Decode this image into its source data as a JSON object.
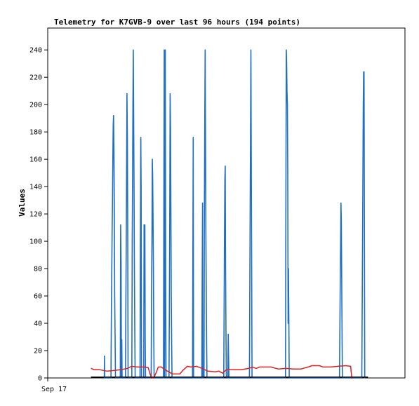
{
  "chart_data": {
    "type": "line",
    "title": "Telemetry for K7GVB-9 over last 96 hours (194 points)",
    "ylabel": "Values",
    "xlabel": "",
    "ylim": [
      0,
      256
    ],
    "y_ticks": [
      0,
      20,
      40,
      60,
      80,
      100,
      120,
      140,
      160,
      180,
      200,
      220,
      240
    ],
    "x_range_hours": [
      0,
      96
    ],
    "x_tick_labels": [
      {
        "label": "Sep 17",
        "hour": 0
      }
    ],
    "grid": false,
    "legend": "none",
    "colors": {
      "blue": "#1f6fc4",
      "red": "#e02020",
      "black": "#000000"
    },
    "series": [
      {
        "color": "#1f6fc4",
        "style": "impulse",
        "points": [
          [
            15.2,
            0
          ],
          [
            15.25,
            16
          ],
          [
            15.3,
            0
          ],
          [
            17.0,
            0
          ],
          [
            17.1,
            45
          ],
          [
            17.2,
            75
          ],
          [
            17.3,
            105
          ],
          [
            17.4,
            130
          ],
          [
            17.5,
            160
          ],
          [
            17.6,
            185
          ],
          [
            17.7,
            192
          ],
          [
            17.8,
            165
          ],
          [
            17.9,
            120
          ],
          [
            18.0,
            60
          ],
          [
            18.1,
            30
          ],
          [
            18.2,
            0
          ],
          [
            19.5,
            0
          ],
          [
            19.6,
            112
          ],
          [
            19.7,
            85
          ],
          [
            19.8,
            0
          ],
          [
            19.9,
            28
          ],
          [
            20.0,
            0
          ],
          [
            20.9,
            0
          ],
          [
            21.0,
            50
          ],
          [
            21.1,
            100
          ],
          [
            21.2,
            155
          ],
          [
            21.3,
            208
          ],
          [
            21.4,
            175
          ],
          [
            21.5,
            105
          ],
          [
            21.6,
            0
          ],
          [
            22.6,
            0
          ],
          [
            22.7,
            100
          ],
          [
            22.8,
            150
          ],
          [
            22.9,
            200
          ],
          [
            23.0,
            240
          ],
          [
            23.1,
            185
          ],
          [
            23.2,
            140
          ],
          [
            23.3,
            80
          ],
          [
            23.4,
            30
          ],
          [
            23.5,
            0
          ],
          [
            24.8,
            0
          ],
          [
            24.9,
            95
          ],
          [
            25.0,
            176
          ],
          [
            25.1,
            140
          ],
          [
            25.2,
            0
          ],
          [
            25.8,
            0
          ],
          [
            25.9,
            112
          ],
          [
            26.0,
            55
          ],
          [
            26.1,
            112
          ],
          [
            26.2,
            30
          ],
          [
            26.3,
            0
          ],
          [
            27.8,
            0
          ],
          [
            27.9,
            60
          ],
          [
            28.0,
            100
          ],
          [
            28.1,
            160
          ],
          [
            28.2,
            148
          ],
          [
            28.3,
            120
          ],
          [
            28.4,
            80
          ],
          [
            28.5,
            30
          ],
          [
            28.6,
            0
          ],
          [
            31.1,
            0
          ],
          [
            31.2,
            120
          ],
          [
            31.3,
            240
          ],
          [
            31.4,
            0
          ],
          [
            31.5,
            120
          ],
          [
            31.6,
            240
          ],
          [
            31.7,
            60
          ],
          [
            31.8,
            0
          ],
          [
            32.6,
            0
          ],
          [
            32.7,
            60
          ],
          [
            32.8,
            120
          ],
          [
            32.9,
            208
          ],
          [
            33.0,
            182
          ],
          [
            33.1,
            120
          ],
          [
            33.2,
            60
          ],
          [
            33.3,
            25
          ],
          [
            33.4,
            0
          ],
          [
            38.9,
            0
          ],
          [
            39.0,
            88
          ],
          [
            39.1,
            176
          ],
          [
            39.2,
            0
          ],
          [
            41.4,
            0
          ],
          [
            41.5,
            64
          ],
          [
            41.6,
            128
          ],
          [
            41.7,
            0
          ],
          [
            42.0,
            0
          ],
          [
            42.1,
            120
          ],
          [
            42.2,
            180
          ],
          [
            42.3,
            240
          ],
          [
            42.4,
            175
          ],
          [
            42.5,
            110
          ],
          [
            42.6,
            60
          ],
          [
            42.7,
            25
          ],
          [
            42.8,
            0
          ],
          [
            47.3,
            0
          ],
          [
            47.4,
            48
          ],
          [
            47.5,
            100
          ],
          [
            47.6,
            145
          ],
          [
            47.7,
            155
          ],
          [
            47.8,
            80
          ],
          [
            47.9,
            32
          ],
          [
            48.0,
            0
          ],
          [
            48.4,
            0
          ],
          [
            48.5,
            32
          ],
          [
            48.6,
            15
          ],
          [
            48.7,
            0
          ],
          [
            54.2,
            0
          ],
          [
            54.3,
            60
          ],
          [
            54.4,
            120
          ],
          [
            54.5,
            180
          ],
          [
            54.6,
            240
          ],
          [
            54.7,
            160
          ],
          [
            54.8,
            80
          ],
          [
            54.9,
            0
          ],
          [
            63.9,
            0
          ],
          [
            64.0,
            120
          ],
          [
            64.1,
            240
          ],
          [
            64.2,
            230
          ],
          [
            64.3,
            210
          ],
          [
            64.4,
            200
          ],
          [
            64.5,
            150
          ],
          [
            64.6,
            40
          ],
          [
            64.7,
            80
          ],
          [
            64.8,
            40
          ],
          [
            64.9,
            0
          ],
          [
            78.4,
            0
          ],
          [
            78.5,
            32
          ],
          [
            78.6,
            64
          ],
          [
            78.7,
            96
          ],
          [
            78.8,
            128
          ],
          [
            78.9,
            116
          ],
          [
            79.0,
            70
          ],
          [
            79.1,
            30
          ],
          [
            79.2,
            0
          ],
          [
            84.4,
            0
          ],
          [
            84.5,
            48
          ],
          [
            84.6,
            100
          ],
          [
            84.7,
            150
          ],
          [
            84.8,
            200
          ],
          [
            84.9,
            224
          ],
          [
            85.0,
            224
          ],
          [
            85.1,
            112
          ],
          [
            85.2,
            0
          ]
        ]
      },
      {
        "color": "#e02020",
        "style": "line",
        "points": [
          [
            11.7,
            7
          ],
          [
            12.5,
            6
          ],
          [
            14.0,
            6
          ],
          [
            16.0,
            5
          ],
          [
            18.0,
            5.5
          ],
          [
            19.5,
            6
          ],
          [
            20.5,
            6.5
          ],
          [
            21.5,
            7
          ],
          [
            22.5,
            8.5
          ],
          [
            24.0,
            8
          ],
          [
            26.0,
            8
          ],
          [
            27.0,
            7.5
          ],
          [
            27.5,
            3
          ],
          [
            27.9,
            0
          ],
          [
            28.5,
            0
          ],
          [
            29.3,
            5
          ],
          [
            29.7,
            8
          ],
          [
            30.5,
            8
          ],
          [
            31.5,
            6
          ],
          [
            33.5,
            3
          ],
          [
            35.5,
            3
          ],
          [
            36.5,
            6
          ],
          [
            37.5,
            8.5
          ],
          [
            38.5,
            8
          ],
          [
            40.0,
            8.5
          ],
          [
            41.5,
            7
          ],
          [
            43.0,
            5
          ],
          [
            45.0,
            4.5
          ],
          [
            46.0,
            5
          ],
          [
            47.0,
            3.5
          ],
          [
            48.0,
            6
          ],
          [
            50.0,
            6
          ],
          [
            52.0,
            6
          ],
          [
            54.0,
            7
          ],
          [
            55.0,
            8
          ],
          [
            56.0,
            7
          ],
          [
            57.0,
            8
          ],
          [
            60.0,
            8
          ],
          [
            62.0,
            6.5
          ],
          [
            64.0,
            7
          ],
          [
            66.0,
            6.5
          ],
          [
            68.0,
            6.5
          ],
          [
            70.0,
            8
          ],
          [
            71.0,
            9
          ],
          [
            73.0,
            9
          ],
          [
            74.0,
            8
          ],
          [
            76.0,
            8
          ],
          [
            78.0,
            8.5
          ],
          [
            80.0,
            9
          ],
          [
            81.4,
            8.5
          ],
          [
            81.7,
            0
          ],
          [
            82.0,
            0
          ]
        ]
      },
      {
        "color": "#000000",
        "style": "line",
        "points": [
          [
            11.7,
            0.6
          ],
          [
            86.0,
            0.6
          ]
        ]
      }
    ]
  }
}
